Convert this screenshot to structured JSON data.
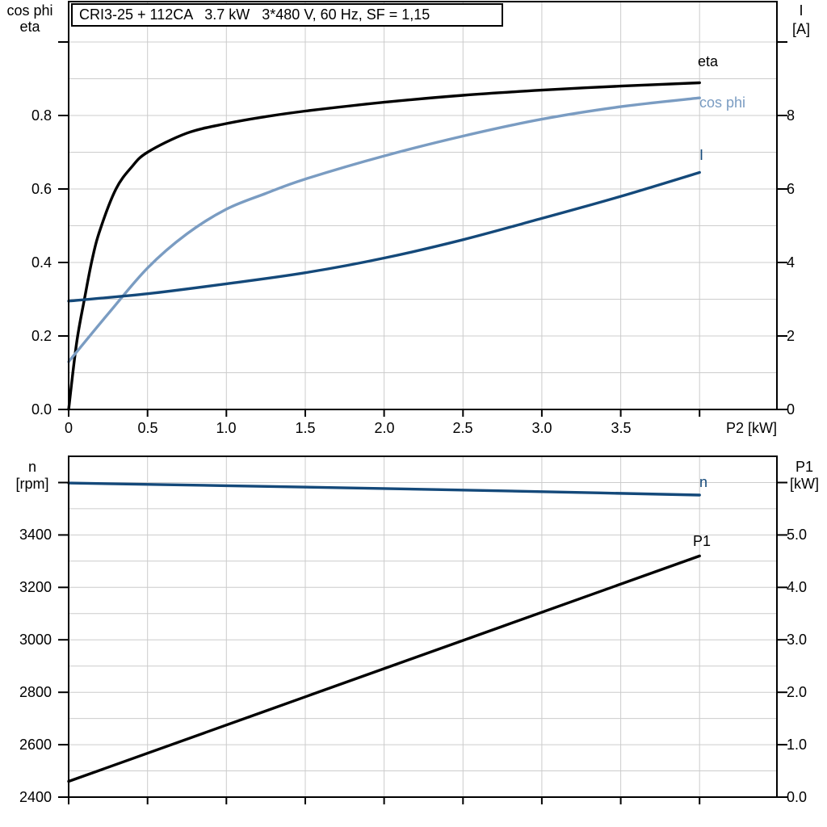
{
  "colors": {
    "background": "#ffffff",
    "axis": "#000000",
    "grid": "#cccccc",
    "curve_black": "#000000",
    "curve_dark_blue": "#14497a",
    "curve_light_blue": "#7a9cc2"
  },
  "chart_data": [
    {
      "type": "line",
      "title": "CRI3-25 + 112CA   3.7 kW   3*480 V, 60 Hz, SF = 1,15",
      "x_axis": {
        "label": "P2 [kW]",
        "min": 0,
        "max": 4.49,
        "grid_step": 0.5,
        "ticks": [
          {
            "v": 0,
            "label": "0"
          },
          {
            "v": 0.5,
            "label": "0.5"
          },
          {
            "v": 1,
            "label": "1.0"
          },
          {
            "v": 1.5,
            "label": "1.5"
          },
          {
            "v": 2,
            "label": "2.0"
          },
          {
            "v": 2.5,
            "label": "2.5"
          },
          {
            "v": 3,
            "label": "3.0"
          },
          {
            "v": 3.5,
            "label": "3.5"
          },
          {
            "v": 4,
            "label": ""
          }
        ]
      },
      "y_left": {
        "label_line1": "cos phi",
        "label_line2": "eta",
        "min": 0,
        "max": 1.11,
        "grid_step": 0.1,
        "ticks": [
          {
            "v": 0,
            "label": "0.0"
          },
          {
            "v": 0.2,
            "label": "0.2"
          },
          {
            "v": 0.4,
            "label": "0.4"
          },
          {
            "v": 0.6,
            "label": "0.6"
          },
          {
            "v": 0.8,
            "label": "0.8"
          },
          {
            "v": 1.0,
            "label": ""
          }
        ]
      },
      "y_right": {
        "label_line1": "I",
        "label_line2": "[A]",
        "min": 0,
        "max": 11.1,
        "ticks": [
          {
            "v": 0,
            "label": "0"
          },
          {
            "v": 2,
            "label": "2"
          },
          {
            "v": 4,
            "label": "4"
          },
          {
            "v": 6,
            "label": "6"
          },
          {
            "v": 8,
            "label": "8"
          },
          {
            "v": 10,
            "label": ""
          }
        ]
      },
      "series": [
        {
          "name": "eta",
          "axis": "left",
          "color": "#000000",
          "points": [
            [
              0,
              0
            ],
            [
              0.05,
              0.18
            ],
            [
              0.1,
              0.3
            ],
            [
              0.15,
              0.41
            ],
            [
              0.2,
              0.49
            ],
            [
              0.3,
              0.6
            ],
            [
              0.4,
              0.66
            ],
            [
              0.5,
              0.7
            ],
            [
              0.75,
              0.752
            ],
            [
              1.0,
              0.778
            ],
            [
              1.25,
              0.797
            ],
            [
              1.5,
              0.812
            ],
            [
              2.0,
              0.836
            ],
            [
              2.5,
              0.855
            ],
            [
              3.0,
              0.869
            ],
            [
              3.5,
              0.88
            ],
            [
              4.0,
              0.889
            ]
          ]
        },
        {
          "name": "cos phi",
          "axis": "left",
          "color": "#7a9cc2",
          "points": [
            [
              0,
              0.13
            ],
            [
              0.25,
              0.26
            ],
            [
              0.5,
              0.385
            ],
            [
              0.75,
              0.478
            ],
            [
              1.0,
              0.545
            ],
            [
              1.25,
              0.588
            ],
            [
              1.5,
              0.627
            ],
            [
              2.0,
              0.69
            ],
            [
              2.5,
              0.744
            ],
            [
              3.0,
              0.79
            ],
            [
              3.5,
              0.824
            ],
            [
              4.0,
              0.848
            ]
          ]
        },
        {
          "name": "I",
          "axis": "right",
          "color": "#14497a",
          "points": [
            [
              0,
              2.95
            ],
            [
              0.5,
              3.15
            ],
            [
              1.0,
              3.42
            ],
            [
              1.5,
              3.72
            ],
            [
              2.0,
              4.12
            ],
            [
              2.5,
              4.62
            ],
            [
              3.0,
              5.2
            ],
            [
              3.5,
              5.8
            ],
            [
              4.0,
              6.45
            ]
          ]
        }
      ]
    },
    {
      "type": "line",
      "title": "",
      "x_axis": {
        "label": "",
        "min": 0,
        "max": 4.49,
        "grid_step": 0.5,
        "ticks": [
          {
            "v": 0,
            "label": ""
          },
          {
            "v": 0.5,
            "label": ""
          },
          {
            "v": 1,
            "label": ""
          },
          {
            "v": 1.5,
            "label": ""
          },
          {
            "v": 2,
            "label": ""
          },
          {
            "v": 2.5,
            "label": ""
          },
          {
            "v": 3,
            "label": ""
          },
          {
            "v": 3.5,
            "label": ""
          },
          {
            "v": 4,
            "label": ""
          }
        ]
      },
      "y_left": {
        "label_line1": "n",
        "label_line2": "[rpm]",
        "min": 2400,
        "max": 3700,
        "grid_step": 100,
        "ticks": [
          {
            "v": 2400,
            "label": "2400"
          },
          {
            "v": 2600,
            "label": "2600"
          },
          {
            "v": 2800,
            "label": "2800"
          },
          {
            "v": 3000,
            "label": "3000"
          },
          {
            "v": 3200,
            "label": "3200"
          },
          {
            "v": 3400,
            "label": "3400"
          },
          {
            "v": 3600,
            "label": ""
          }
        ]
      },
      "y_right": {
        "label_line1": "P1",
        "label_line2": "[kW]",
        "min": 0,
        "max": 6.5,
        "ticks": [
          {
            "v": 0,
            "label": "0.0"
          },
          {
            "v": 1,
            "label": "1.0"
          },
          {
            "v": 2,
            "label": "2.0"
          },
          {
            "v": 3,
            "label": "3.0"
          },
          {
            "v": 4,
            "label": "4.0"
          },
          {
            "v": 5,
            "label": "5.0"
          },
          {
            "v": 6,
            "label": ""
          }
        ]
      },
      "series": [
        {
          "name": "n",
          "axis": "left",
          "color": "#14497a",
          "points": [
            [
              0,
              3598
            ],
            [
              1.0,
              3588
            ],
            [
              2.0,
              3577
            ],
            [
              3.0,
              3565
            ],
            [
              4.0,
              3552
            ]
          ]
        },
        {
          "name": "P1",
          "axis": "right",
          "color": "#000000",
          "points": [
            [
              0,
              0.3
            ],
            [
              2.0,
              2.45
            ],
            [
              4.0,
              4.6
            ]
          ]
        }
      ]
    }
  ]
}
